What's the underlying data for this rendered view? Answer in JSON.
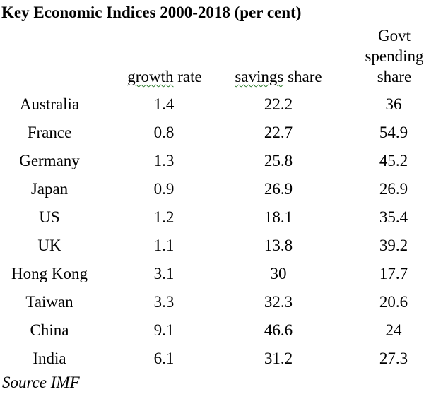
{
  "title": "Key Economic Indices 2000-2018 (per cent)",
  "headers": {
    "growth_word": "growth",
    "growth_rest": " rate",
    "savings_word": "savings",
    "savings_rest": " share",
    "govt_line1": "Govt",
    "govt_line2": "spending",
    "govt_line3": "share"
  },
  "rows": [
    {
      "country": "Australia",
      "growth": "1.4",
      "savings": "22.2",
      "govt": "36"
    },
    {
      "country": "France",
      "growth": "0.8",
      "savings": "22.7",
      "govt": "54.9"
    },
    {
      "country": "Germany",
      "growth": "1.3",
      "savings": "25.8",
      "govt": "45.2"
    },
    {
      "country": "Japan",
      "growth": "0.9",
      "savings": "26.9",
      "govt": "26.9"
    },
    {
      "country": "US",
      "growth": "1.2",
      "savings": "18.1",
      "govt": "35.4"
    },
    {
      "country": "UK",
      "growth": "1.1",
      "savings": "13.8",
      "govt": "39.2"
    },
    {
      "country": "Hong Kong",
      "growth": "3.1",
      "savings": "30",
      "govt": "17.7"
    },
    {
      "country": "Taiwan",
      "growth": "3.3",
      "savings": "32.3",
      "govt": "20.6"
    },
    {
      "country": "China",
      "growth": "9.1",
      "savings": "46.6",
      "govt": "24"
    },
    {
      "country": "India",
      "growth": "6.1",
      "savings": "31.2",
      "govt": "27.3"
    }
  ],
  "source": "Source IMF",
  "colors": {
    "text": "#000000",
    "background": "#ffffff",
    "spellcheck_underline": "#2b7a2b"
  }
}
